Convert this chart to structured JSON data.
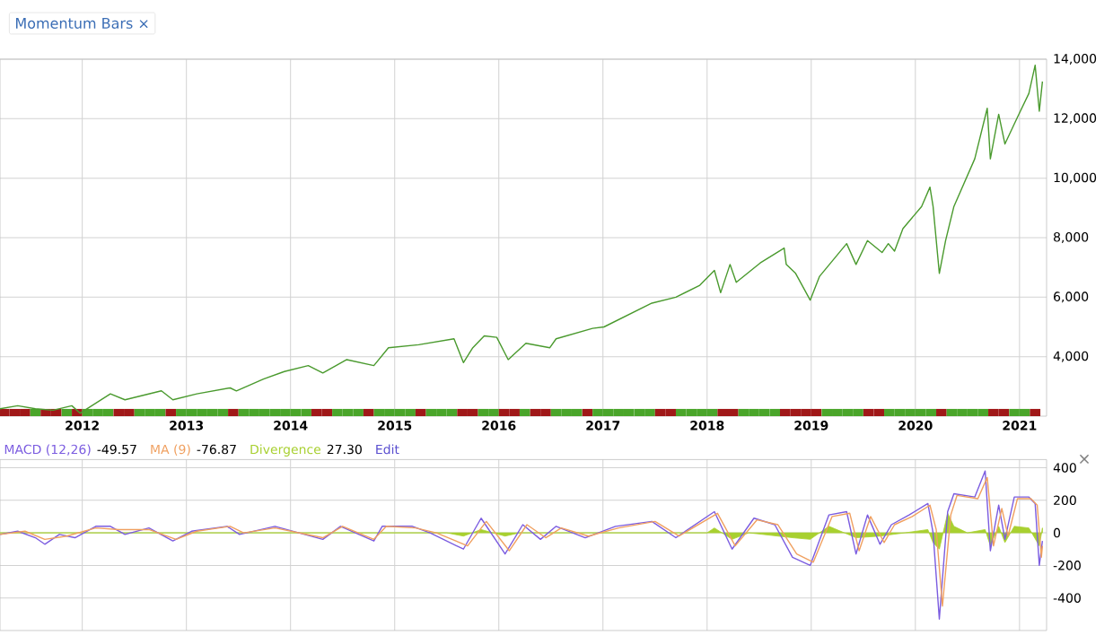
{
  "chart_data": [
    {
      "type": "line",
      "title": "Momentum Bars ×",
      "series": [
        {
          "color": "#4a9a2e",
          "x": [
            2011.21,
            2011.38,
            2011.55,
            2011.72,
            2011.9,
            2011.98,
            2012.27,
            2012.41,
            2012.76,
            2012.87,
            2013.1,
            2013.42,
            2013.48,
            2013.74,
            2013.94,
            2014.17,
            2014.31,
            2014.54,
            2014.8,
            2014.94,
            2015.23,
            2015.57,
            2015.66,
            2015.75,
            2015.86,
            2015.98,
            2016.09,
            2016.26,
            2016.49,
            2016.55,
            2016.9,
            2017.01,
            2017.24,
            2017.47,
            2017.7,
            2017.93,
            2018.07,
            2018.13,
            2018.22,
            2018.28,
            2018.51,
            2018.74,
            2018.76,
            2018.85,
            2018.99,
            2019.08,
            2019.34,
            2019.43,
            2019.54,
            2019.68,
            2019.74,
            2019.8,
            2019.88,
            2020.06,
            2020.14,
            2020.17,
            2020.23,
            2020.29,
            2020.37,
            2020.57,
            2020.69,
            2020.72,
            2020.8,
            2020.86,
            2020.98,
            2021.09,
            2021.15,
            2021.19,
            2021.22
          ],
          "values": [
            2250,
            2350,
            2250,
            2200,
            2350,
            2100,
            2750,
            2550,
            2850,
            2550,
            2750,
            2950,
            2850,
            3250,
            3500,
            3700,
            3450,
            3900,
            3700,
            4300,
            4400,
            4600,
            3800,
            4300,
            4700,
            4650,
            3900,
            4450,
            4300,
            4600,
            4950,
            5000,
            5400,
            5800,
            6000,
            6400,
            6900,
            6150,
            7100,
            6500,
            7150,
            7650,
            7100,
            6800,
            5900,
            6700,
            7800,
            7100,
            7900,
            7500,
            7800,
            7550,
            8300,
            9050,
            9700,
            9050,
            6800,
            7900,
            9050,
            10650,
            12350,
            10650,
            12150,
            11150,
            12050,
            12850,
            13800,
            12250,
            13250
          ]
        },
        {
          "type": "bar",
          "x": [
            2011.25,
            2011.35,
            2011.45,
            2011.55,
            2011.65,
            2011.75,
            2011.85,
            2011.95,
            2012.05,
            2012.15,
            2012.25,
            2012.35,
            2012.45,
            2012.55,
            2012.65,
            2012.75,
            2012.85,
            2012.95,
            2013.05,
            2013.15,
            2013.25,
            2013.35,
            2013.45,
            2013.55,
            2013.65,
            2013.75,
            2013.85,
            2013.95,
            2014.05,
            2014.15,
            2014.25,
            2014.35,
            2014.45,
            2014.55,
            2014.65,
            2014.75,
            2014.85,
            2014.95,
            2015.05,
            2015.15,
            2015.25,
            2015.35,
            2015.45,
            2015.55,
            2015.65,
            2015.75,
            2015.85,
            2015.95,
            2016.05,
            2016.15,
            2016.25,
            2016.35,
            2016.45,
            2016.55,
            2016.65,
            2016.75,
            2016.85,
            2016.95,
            2017.05,
            2017.15,
            2017.25,
            2017.35,
            2017.45,
            2017.55,
            2017.65,
            2017.75,
            2017.85,
            2017.95,
            2018.05,
            2018.15,
            2018.25,
            2018.35,
            2018.45,
            2018.55,
            2018.65,
            2018.75,
            2018.85,
            2018.95,
            2019.05,
            2019.15,
            2019.25,
            2019.35,
            2019.45,
            2019.55,
            2019.65,
            2019.75,
            2019.85,
            2019.95,
            2020.05,
            2020.15,
            2020.25,
            2020.35,
            2020.45,
            2020.55,
            2020.65,
            2020.75,
            2020.85,
            2020.95,
            2021.05,
            2021.15
          ],
          "values": [
            2250,
            2250,
            2250,
            2250,
            2250,
            2250,
            2250,
            2250,
            2250,
            2250,
            2250,
            2250,
            2250,
            2250,
            2250,
            2250,
            2250,
            2250,
            2250,
            2250,
            2250,
            2250,
            2250,
            2250,
            2250,
            2250,
            2250,
            2250,
            2250,
            2250,
            2250,
            2250,
            2250,
            2250,
            2250,
            2250,
            2250,
            2250,
            2250,
            2250,
            2250,
            2250,
            2250,
            2250,
            2250,
            2250,
            2250,
            2250,
            2250,
            2250,
            2250,
            2250,
            2250,
            2250,
            2250,
            2250,
            2250,
            2250,
            2250,
            2250,
            2250,
            2250,
            2250,
            2250,
            2250,
            2250,
            2250,
            2250,
            2250,
            2250,
            2250,
            2250,
            2250,
            2250,
            2250,
            2250,
            2250,
            2250,
            2250,
            2250,
            2250,
            2250,
            2250,
            2250,
            2250,
            2250,
            2250,
            2250,
            2250,
            2250,
            2250,
            2250,
            2250,
            2250,
            2250,
            2250,
            2250,
            2250,
            2250,
            2250
          ],
          "colors": [
            "#a01818",
            "#a01818",
            "#a01818",
            "#4aa52a",
            "#a01818",
            "#a01818",
            "#4aa52a",
            "#a01818",
            "#4aa52a",
            "#4aa52a",
            "#4aa52a",
            "#a01818",
            "#a01818",
            "#4aa52a",
            "#4aa52a",
            "#4aa52a",
            "#a01818",
            "#4aa52a",
            "#4aa52a",
            "#4aa52a",
            "#4aa52a",
            "#4aa52a",
            "#a01818",
            "#4aa52a",
            "#4aa52a",
            "#4aa52a",
            "#4aa52a",
            "#4aa52a",
            "#4aa52a",
            "#4aa52a",
            "#a01818",
            "#a01818",
            "#4aa52a",
            "#4aa52a",
            "#4aa52a",
            "#a01818",
            "#4aa52a",
            "#4aa52a",
            "#4aa52a",
            "#4aa52a",
            "#a01818",
            "#4aa52a",
            "#4aa52a",
            "#4aa52a",
            "#a01818",
            "#a01818",
            "#4aa52a",
            "#4aa52a",
            "#a01818",
            "#a01818",
            "#4aa52a",
            "#a01818",
            "#a01818",
            "#4aa52a",
            "#4aa52a",
            "#4aa52a",
            "#a01818",
            "#4aa52a",
            "#4aa52a",
            "#4aa52a",
            "#4aa52a",
            "#4aa52a",
            "#4aa52a",
            "#a01818",
            "#a01818",
            "#4aa52a",
            "#4aa52a",
            "#4aa52a",
            "#4aa52a",
            "#a01818",
            "#a01818",
            "#4aa52a",
            "#4aa52a",
            "#4aa52a",
            "#4aa52a",
            "#a01818",
            "#a01818",
            "#a01818",
            "#a01818",
            "#4aa52a",
            "#4aa52a",
            "#4aa52a",
            "#4aa52a",
            "#a01818",
            "#a01818",
            "#4aa52a",
            "#4aa52a",
            "#4aa52a",
            "#4aa52a",
            "#4aa52a",
            "#a01818",
            "#4aa52a",
            "#4aa52a",
            "#4aa52a",
            "#4aa52a",
            "#a01818",
            "#a01818",
            "#4aa52a",
            "#4aa52a",
            "#a01818"
          ]
        }
      ],
      "xlim": [
        2011.21,
        2021.26
      ],
      "xticks": [
        2012,
        2013,
        2014,
        2015,
        2016,
        2017,
        2018,
        2019,
        2020,
        2021
      ],
      "ylim": [
        2000,
        14000
      ],
      "yticks": [
        {
          "value": 4000,
          "label": "4,000"
        },
        {
          "value": 6000,
          "label": "6,000"
        },
        {
          "value": 8000,
          "label": "8,000"
        },
        {
          "value": 10000,
          "label": "10,000"
        },
        {
          "value": 12000,
          "label": "12,000"
        },
        {
          "value": 14000,
          "label": "14,000"
        }
      ],
      "grid": true
    },
    {
      "type": "line",
      "legend": "top left",
      "tick_labels": "y",
      "grid": true,
      "annotations": [
        "-49.57",
        "-76.87",
        "27.30",
        "Edit",
        "×"
      ],
      "xlim": [
        2011.21,
        2021.26
      ],
      "xticks": [
        2012,
        2013,
        2014,
        2015,
        2016,
        2017,
        2018,
        2019,
        2020,
        2021
      ],
      "ylim": [
        -600,
        450
      ],
      "yticks": [
        -400,
        -200,
        0,
        200,
        400
      ],
      "series": [
        {
          "name": "MACD (12,26)",
          "color": "#7b5ce0",
          "x": [
            2011.21,
            2011.38,
            2011.55,
            2011.64,
            2011.78,
            2011.93,
            2012.13,
            2012.27,
            2012.41,
            2012.64,
            2012.87,
            2013.05,
            2013.39,
            2013.51,
            2013.85,
            2014.31,
            2014.48,
            2014.8,
            2014.88,
            2015.17,
            2015.34,
            2015.66,
            2015.83,
            2016.06,
            2016.23,
            2016.4,
            2016.55,
            2016.83,
            2017.12,
            2017.47,
            2017.7,
            2018.07,
            2018.24,
            2018.45,
            2018.65,
            2018.82,
            2018.99,
            2019.17,
            2019.34,
            2019.43,
            2019.54,
            2019.66,
            2019.77,
            2019.94,
            2020.12,
            2020.17,
            2020.23,
            2020.31,
            2020.37,
            2020.57,
            2020.67,
            2020.72,
            2020.8,
            2020.86,
            2020.95,
            2021.09,
            2021.15,
            2021.19,
            2021.22
          ],
          "values": [
            -10,
            10,
            -30,
            -70,
            -10,
            -30,
            40,
            40,
            -10,
            30,
            -50,
            10,
            40,
            -10,
            40,
            -40,
            40,
            -50,
            40,
            40,
            0,
            -100,
            90,
            -130,
            50,
            -40,
            40,
            -30,
            40,
            70,
            -30,
            130,
            -100,
            90,
            50,
            -150,
            -200,
            110,
            130,
            -130,
            110,
            -70,
            50,
            110,
            180,
            0,
            -530,
            130,
            240,
            220,
            380,
            -110,
            170,
            -40,
            220,
            220,
            180,
            -200,
            -50
          ]
        },
        {
          "name": "MA (9)",
          "color": "#f0a060",
          "x": [
            2011.21,
            2011.45,
            2011.64,
            2011.85,
            2012.13,
            2012.35,
            2012.64,
            2012.9,
            2013.1,
            2013.42,
            2013.55,
            2013.85,
            2014.31,
            2014.5,
            2014.8,
            2014.92,
            2015.2,
            2015.4,
            2015.7,
            2015.88,
            2016.1,
            2016.27,
            2016.45,
            2016.6,
            2016.86,
            2017.15,
            2017.5,
            2017.73,
            2018.1,
            2018.27,
            2018.48,
            2018.68,
            2018.86,
            2019.02,
            2019.2,
            2019.37,
            2019.46,
            2019.57,
            2019.7,
            2019.8,
            2019.97,
            2020.14,
            2020.2,
            2020.26,
            2020.34,
            2020.4,
            2020.6,
            2020.69,
            2020.75,
            2020.83,
            2020.89,
            2020.98,
            2021.11,
            2021.17,
            2021.21,
            2021.22
          ],
          "values": [
            -10,
            10,
            -40,
            -20,
            30,
            20,
            20,
            -40,
            10,
            40,
            0,
            30,
            -30,
            40,
            -40,
            40,
            30,
            0,
            -80,
            70,
            -110,
            50,
            -30,
            30,
            -20,
            30,
            70,
            -20,
            120,
            -80,
            80,
            50,
            -130,
            -180,
            100,
            120,
            -110,
            100,
            -60,
            50,
            100,
            170,
            20,
            -450,
            110,
            230,
            210,
            340,
            -80,
            150,
            -20,
            210,
            210,
            170,
            -150,
            -80
          ]
        },
        {
          "name": "Divergence",
          "type": "area",
          "color": "#a8d030",
          "x": [
            2011.21,
            2015.5,
            2015.66,
            2015.83,
            2016.06,
            2016.2,
            2018.0,
            2018.07,
            2018.24,
            2018.4,
            2018.82,
            2018.99,
            2019.17,
            2019.43,
            2019.66,
            2019.9,
            2020.12,
            2020.17,
            2020.23,
            2020.31,
            2020.37,
            2020.5,
            2020.67,
            2020.72,
            2020.8,
            2020.86,
            2020.95,
            2021.09,
            2021.19,
            2021.22
          ],
          "values": [
            0,
            0,
            -20,
            20,
            -20,
            0,
            0,
            30,
            -40,
            0,
            -30,
            -40,
            40,
            -30,
            -20,
            0,
            20,
            -60,
            -100,
            120,
            40,
            0,
            20,
            -80,
            40,
            -60,
            40,
            30,
            -80,
            30
          ]
        }
      ]
    }
  ]
}
